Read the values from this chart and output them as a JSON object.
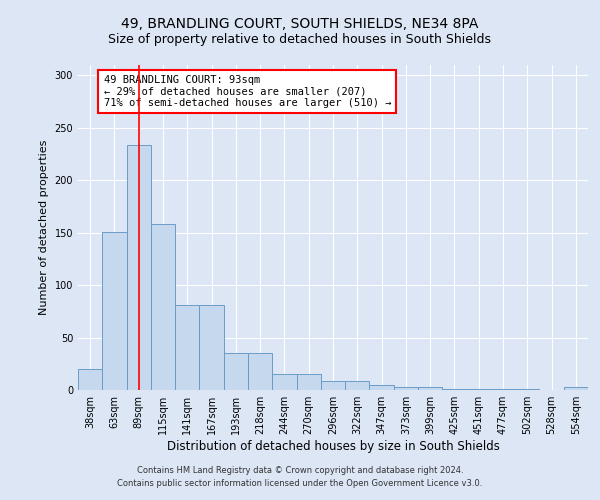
{
  "title": "49, BRANDLING COURT, SOUTH SHIELDS, NE34 8PA",
  "subtitle": "Size of property relative to detached houses in South Shields",
  "xlabel": "Distribution of detached houses by size in South Shields",
  "ylabel": "Number of detached properties",
  "categories": [
    "38sqm",
    "63sqm",
    "89sqm",
    "115sqm",
    "141sqm",
    "167sqm",
    "193sqm",
    "218sqm",
    "244sqm",
    "270sqm",
    "296sqm",
    "322sqm",
    "347sqm",
    "373sqm",
    "399sqm",
    "425sqm",
    "451sqm",
    "477sqm",
    "502sqm",
    "528sqm",
    "554sqm"
  ],
  "values": [
    20,
    151,
    234,
    158,
    81,
    81,
    35,
    35,
    15,
    15,
    9,
    9,
    5,
    3,
    3,
    1,
    1,
    1,
    1,
    0,
    3
  ],
  "bar_color": "#c5d8ee",
  "bar_edge_color": "#6a9cc9",
  "red_line_x": 2,
  "annotation_text": "49 BRANDLING COURT: 93sqm\n← 29% of detached houses are smaller (207)\n71% of semi-detached houses are larger (510) →",
  "annotation_box_color": "white",
  "annotation_box_edge": "red",
  "ylim": [
    0,
    310
  ],
  "yticks": [
    0,
    50,
    100,
    150,
    200,
    250,
    300
  ],
  "footer_line1": "Contains HM Land Registry data © Crown copyright and database right 2024.",
  "footer_line2": "Contains public sector information licensed under the Open Government Licence v3.0.",
  "bg_color": "#dce6f5",
  "plot_bg_color": "#dce6f5",
  "title_fontsize": 10,
  "subtitle_fontsize": 9,
  "tick_fontsize": 7,
  "ylabel_fontsize": 8,
  "xlabel_fontsize": 8.5,
  "annotation_fontsize": 7.5
}
